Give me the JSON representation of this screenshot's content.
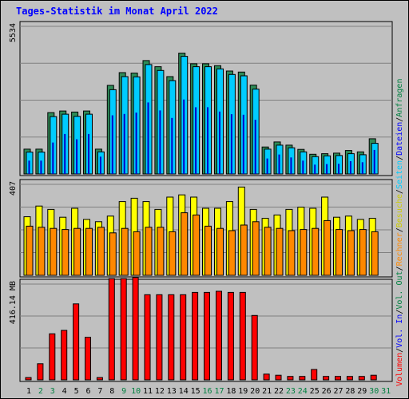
{
  "chart_data": {
    "type": "bar",
    "title": "Tages-Statistik im Monat April 2022",
    "days": [
      "1",
      "2",
      "3",
      "4",
      "5",
      "6",
      "7",
      "8",
      "9",
      "10",
      "11",
      "12",
      "13",
      "14",
      "15",
      "16",
      "17",
      "18",
      "19",
      "20",
      "21",
      "22",
      "23",
      "24",
      "25",
      "26",
      "27",
      "28",
      "29",
      "30",
      "31"
    ],
    "weekend_days": [
      "2",
      "3",
      "9",
      "10",
      "16",
      "17",
      "23",
      "24",
      "30",
      "31"
    ],
    "colors": {
      "anfragen": "#2e8b57",
      "dateien": "#0000cc",
      "seiten": "#00ccff",
      "besuche": "#ffff00",
      "rechner": "#ff8800",
      "volumen": "#ff0000",
      "weekday_label": "#000000",
      "weekend_label": "#008040",
      "panel": "#c0c0c0"
    },
    "panels": [
      {
        "id": "top",
        "ymax_label": "5534",
        "ymax": 5534,
        "series": [
          {
            "key": "anfragen",
            "values": [
              930,
              930,
              2300,
              2360,
              2320,
              2360,
              930,
              3320,
              3800,
              3780,
              4250,
              4020,
              3650,
              4530,
              4130,
              4130,
              4060,
              3860,
              3820,
              3330,
              1010,
              1200,
              1080,
              920,
              740,
              760,
              780,
              880,
              830,
              1320,
              0
            ]
          },
          {
            "key": "seiten",
            "values": [
              820,
              820,
              2150,
              2240,
              2160,
              2240,
              830,
              3160,
              3650,
              3640,
              4100,
              3880,
              3500,
              4410,
              4020,
              4020,
              3940,
              3730,
              3680,
              3180,
              930,
              1080,
              980,
              830,
              650,
              680,
              690,
              760,
              720,
              1150,
              0
            ]
          },
          {
            "key": "dateien",
            "values": [
              500,
              500,
              1180,
              1500,
              1300,
              1500,
              650,
              2200,
              2250,
              2300,
              2680,
              2380,
              2100,
              2790,
              2500,
              2500,
              2340,
              2240,
              2220,
              2030,
              580,
              730,
              620,
              500,
              350,
              370,
              380,
              480,
              440,
              900,
              0
            ]
          }
        ]
      },
      {
        "id": "middle",
        "ymax_label": "407",
        "ymax": 407,
        "series": [
          {
            "key": "besuche",
            "values": [
              262,
              310,
              295,
              260,
              300,
              250,
              240,
              265,
              330,
              345,
              330,
              295,
              350,
              360,
              350,
              300,
              300,
              330,
              395,
              295,
              255,
              270,
              295,
              305,
              300,
              350,
              260,
              265,
              250,
              255,
              0
            ]
          },
          {
            "key": "rechner",
            "values": [
              220,
              215,
              210,
              205,
              210,
              210,
              215,
              190,
              210,
              195,
              215,
              215,
              195,
              280,
              270,
              220,
              210,
              200,
              225,
              240,
              215,
              210,
              200,
              205,
              210,
              245,
              205,
              200,
              205,
              195,
              0
            ]
          }
        ]
      },
      {
        "id": "bottom",
        "ymax_label": "416.14 MB",
        "ymax": 416.14,
        "series": [
          {
            "key": "volumen",
            "values": [
              10,
              70,
              200,
              215,
              330,
              185,
              10,
              440,
              440,
              445,
              370,
              370,
              370,
              370,
              380,
              380,
              385,
              380,
              380,
              280,
              25,
              20,
              15,
              15,
              45,
              15,
              15,
              15,
              15,
              20,
              0
            ]
          }
        ]
      }
    ],
    "side_label": [
      {
        "text": "Volumen",
        "color": "#ff0000"
      },
      {
        "text": "/",
        "color": "#000000"
      },
      {
        "text": "Vol. In",
        "color": "#0000ff"
      },
      {
        "text": "/",
        "color": "#000000"
      },
      {
        "text": "Vol. Out",
        "color": "#008040"
      },
      {
        "text": "/",
        "color": "#000000"
      },
      {
        "text": "Rechner",
        "color": "#ff8800"
      },
      {
        "text": "/",
        "color": "#000000"
      },
      {
        "text": "Besuche",
        "color": "#cccc00"
      },
      {
        "text": "/",
        "color": "#000000"
      },
      {
        "text": "Seiten",
        "color": "#00ccff"
      },
      {
        "text": "/",
        "color": "#000000"
      },
      {
        "text": "Dateien",
        "color": "#0000ff"
      },
      {
        "text": "/",
        "color": "#000000"
      },
      {
        "text": "Anfragen",
        "color": "#008040"
      }
    ]
  }
}
